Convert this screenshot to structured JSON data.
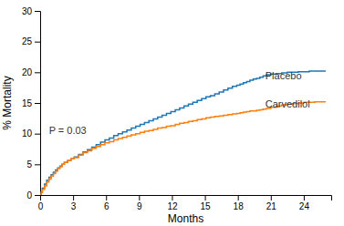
{
  "chart_data": {
    "type": "step",
    "xlabel": "Months",
    "ylabel": "% Mortality",
    "xlim": [
      0,
      26.5
    ],
    "ylim": [
      0,
      30
    ],
    "xticks": [
      0,
      3,
      6,
      9,
      12,
      15,
      18,
      21,
      24
    ],
    "yticks": [
      0,
      5,
      10,
      15,
      20,
      25,
      30
    ],
    "x": [
      0,
      0.1,
      0.2,
      0.4,
      0.6,
      0.8,
      1.0,
      1.2,
      1.4,
      1.6,
      1.8,
      2.0,
      2.2,
      2.5,
      2.8,
      3.1,
      3.5,
      3.9,
      4.3,
      4.7,
      5.1,
      5.5,
      5.9,
      6.3,
      6.7,
      7.1,
      7.5,
      7.9,
      8.3,
      8.7,
      9.1,
      9.5,
      9.9,
      10.3,
      10.7,
      11.1,
      11.5,
      11.9,
      12.3,
      12.7,
      13.1,
      13.5,
      13.9,
      14.3,
      14.7,
      15.1,
      15.5,
      15.9,
      16.3,
      16.7,
      17.1,
      17.5,
      17.9,
      18.2,
      18.5,
      18.8,
      19.1,
      19.4,
      19.7,
      20.0,
      20.3,
      20.6,
      21.0,
      21.5,
      22.0,
      22.5,
      23.0,
      23.5,
      24.0,
      24.5,
      25.0,
      25.5,
      26.0
    ],
    "series": [
      {
        "values": [
          0,
          0.5,
          1.1,
          1.8,
          2.4,
          2.9,
          3.3,
          3.7,
          4.1,
          4.4,
          4.7,
          5.0,
          5.3,
          5.6,
          5.9,
          6.2,
          6.6,
          7.0,
          7.4,
          7.8,
          8.2,
          8.6,
          9.0,
          9.3,
          9.7,
          10.0,
          10.3,
          10.6,
          10.9,
          11.2,
          11.5,
          11.8,
          12.1,
          12.4,
          12.7,
          13.0,
          13.3,
          13.6,
          13.9,
          14.2,
          14.5,
          14.8,
          15.1,
          15.4,
          15.7,
          16.0,
          16.2,
          16.5,
          16.8,
          17.1,
          17.4,
          17.7,
          17.9,
          18.1,
          18.3,
          18.5,
          18.7,
          18.9,
          19.0,
          19.2,
          19.4,
          19.6,
          19.7,
          19.8,
          19.9,
          20.0,
          20.0,
          20.1,
          20.1,
          20.2,
          20.2,
          20.2,
          20.2
        ]
      },
      {
        "values": [
          0,
          0.4,
          0.9,
          1.5,
          2.1,
          2.6,
          3.1,
          3.5,
          3.9,
          4.3,
          4.6,
          5.0,
          5.3,
          5.6,
          5.9,
          6.1,
          6.5,
          6.9,
          7.2,
          7.6,
          7.9,
          8.2,
          8.5,
          8.7,
          9.0,
          9.2,
          9.4,
          9.6,
          9.8,
          10.0,
          10.2,
          10.4,
          10.5,
          10.7,
          10.9,
          11.0,
          11.2,
          11.3,
          11.5,
          11.7,
          11.8,
          12.0,
          12.1,
          12.3,
          12.4,
          12.6,
          12.7,
          12.8,
          12.9,
          13.0,
          13.1,
          13.2,
          13.3,
          13.4,
          13.5,
          13.6,
          13.7,
          13.7,
          13.8,
          13.9,
          14.0,
          14.1,
          14.3,
          14.5,
          14.7,
          14.8,
          14.9,
          15.0,
          15.1,
          15.1,
          15.2,
          15.2,
          15.2
        ]
      }
    ],
    "annotations": [
      {
        "text": "P = 0.03",
        "x": 0.8,
        "y": 10.0
      },
      {
        "text": "Placebo",
        "x": 20.5,
        "y": 18.8
      },
      {
        "text": "Carvedilol",
        "x": 20.5,
        "y": 14.2
      }
    ]
  }
}
